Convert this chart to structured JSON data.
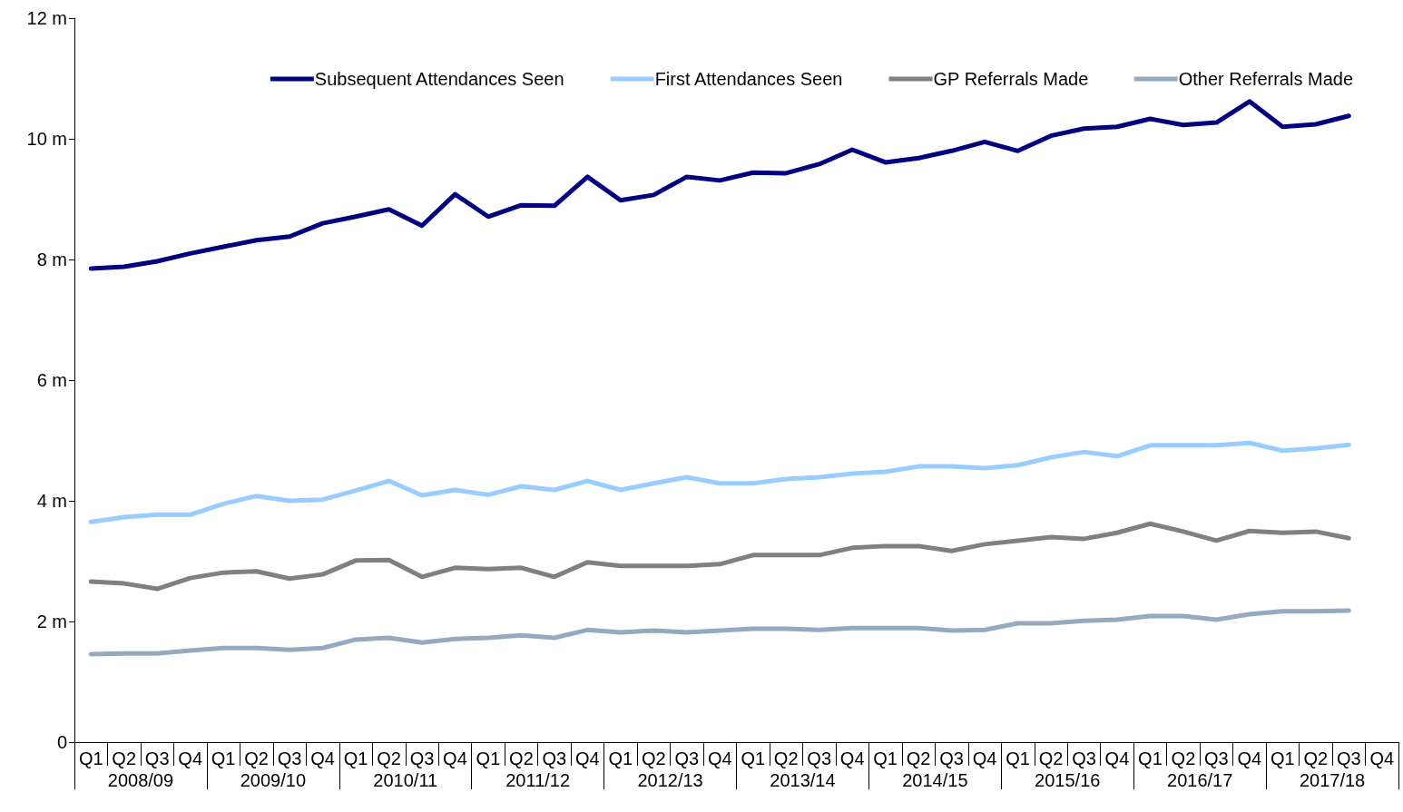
{
  "chart_data": {
    "type": "line",
    "categories": [
      "Q1",
      "Q2",
      "Q3",
      "Q4",
      "Q1",
      "Q2",
      "Q3",
      "Q4",
      "Q1",
      "Q2",
      "Q3",
      "Q4",
      "Q1",
      "Q2",
      "Q3",
      "Q4",
      "Q1",
      "Q2",
      "Q3",
      "Q4",
      "Q1",
      "Q2",
      "Q3",
      "Q4",
      "Q1",
      "Q2",
      "Q3",
      "Q4",
      "Q1",
      "Q2",
      "Q3",
      "Q4",
      "Q1",
      "Q2",
      "Q3",
      "Q4",
      "Q1",
      "Q2",
      "Q3",
      "Q4"
    ],
    "annotations": [
      "2008/09",
      "2009/10",
      "2010/11",
      "2011/12",
      "2012/13",
      "2013/14",
      "2014/15",
      "2015/16",
      "2016/17",
      "2017/18"
    ],
    "series": [
      {
        "name": "Subsequent Attendances Seen",
        "color": "#000080",
        "values": [
          7.85,
          7.88,
          7.97,
          8.1,
          8.21,
          8.32,
          8.38,
          8.6,
          8.71,
          8.83,
          8.56,
          9.08,
          8.71,
          8.9,
          8.89,
          9.37,
          8.98,
          9.07,
          9.37,
          9.31,
          9.44,
          9.43,
          9.58,
          9.82,
          9.61,
          9.68,
          9.8,
          9.95,
          9.8,
          10.05,
          10.17,
          10.2,
          10.33,
          10.23,
          10.27,
          10.62,
          10.2,
          10.24,
          10.38,
          null
        ]
      },
      {
        "name": "First Attendances Seen",
        "color": "#99ccff",
        "values": [
          3.65,
          3.73,
          3.77,
          3.77,
          3.95,
          4.08,
          4.0,
          4.02,
          4.17,
          4.33,
          4.09,
          4.18,
          4.1,
          4.24,
          4.18,
          4.33,
          4.18,
          4.29,
          4.39,
          4.29,
          4.29,
          4.36,
          4.39,
          4.45,
          4.48,
          4.57,
          4.57,
          4.54,
          4.59,
          4.72,
          4.81,
          4.74,
          4.92,
          4.92,
          4.92,
          4.96,
          4.83,
          4.87,
          4.93,
          null
        ]
      },
      {
        "name": "GP Referrals Made",
        "color": "#808080",
        "values": [
          2.66,
          2.63,
          2.54,
          2.72,
          2.81,
          2.83,
          2.71,
          2.78,
          3.01,
          3.02,
          2.74,
          2.89,
          2.87,
          2.89,
          2.74,
          2.98,
          2.92,
          2.92,
          2.92,
          2.95,
          3.1,
          3.1,
          3.1,
          3.22,
          3.25,
          3.25,
          3.17,
          3.28,
          3.34,
          3.4,
          3.37,
          3.47,
          3.62,
          3.49,
          3.34,
          3.5,
          3.47,
          3.49,
          3.38,
          null
        ]
      },
      {
        "name": "Other Referrals Made",
        "color": "#96a9c0",
        "values": [
          1.46,
          1.47,
          1.47,
          1.52,
          1.56,
          1.56,
          1.53,
          1.56,
          1.7,
          1.73,
          1.65,
          1.71,
          1.73,
          1.77,
          1.73,
          1.86,
          1.82,
          1.85,
          1.82,
          1.85,
          1.88,
          1.88,
          1.86,
          1.89,
          1.89,
          1.89,
          1.85,
          1.86,
          1.97,
          1.97,
          2.01,
          2.03,
          2.09,
          2.09,
          2.03,
          2.12,
          2.17,
          2.17,
          2.18,
          null
        ]
      }
    ],
    "ylim": [
      0,
      12
    ],
    "yticks": [
      0,
      {
        "value": 2,
        "label": "2 m"
      },
      {
        "value": 4,
        "label": "4 m"
      },
      {
        "value": 6,
        "label": "6 m"
      },
      {
        "value": 8,
        "label": "8 m"
      },
      {
        "value": 10,
        "label": "10 m"
      },
      {
        "value": 12,
        "label": "12 m"
      }
    ],
    "grid": false,
    "legend": "top right",
    "marker": "none",
    "line_style": "solid"
  }
}
